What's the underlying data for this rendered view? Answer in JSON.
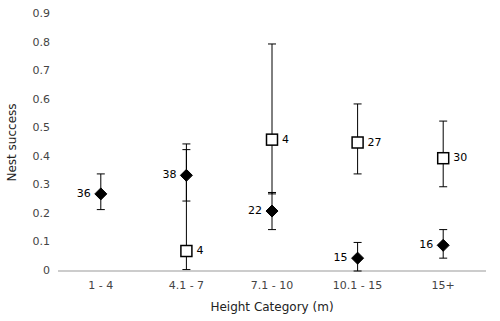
{
  "chart_data": {
    "type": "scatter",
    "categories": [
      "1 - 4",
      "4.1 - 7",
      "7.1 - 10",
      "10.1 - 15",
      "15+"
    ],
    "series": [
      {
        "marker": "open-square",
        "color": "#000000",
        "values": [
          null,
          0.07,
          0.46,
          0.45,
          0.395
        ],
        "error_upper": [
          null,
          0.375,
          0.335,
          0.135,
          0.13
        ],
        "error_lower": [
          null,
          0.065,
          0.19,
          0.11,
          0.1
        ],
        "labels": [
          null,
          "4",
          "4",
          "27",
          "30"
        ]
      },
      {
        "marker": "diamond",
        "color": "#000000",
        "values": [
          0.27,
          0.335,
          0.21,
          0.045,
          0.09
        ],
        "error_upper": [
          0.07,
          0.09,
          0.065,
          0.055,
          0.055
        ],
        "error_lower": [
          0.055,
          0.09,
          0.065,
          0.045,
          0.045
        ],
        "labels": [
          "36",
          "38",
          "22",
          "15",
          "16"
        ]
      }
    ],
    "x_label": "Height Category (m)",
    "y_label": "Nest success",
    "ylim": [
      0,
      0.9
    ],
    "yticks": [
      0,
      0.1,
      0.2,
      0.3,
      0.4,
      0.5,
      0.6,
      0.7,
      0.8,
      0.9
    ],
    "grid": false
  }
}
